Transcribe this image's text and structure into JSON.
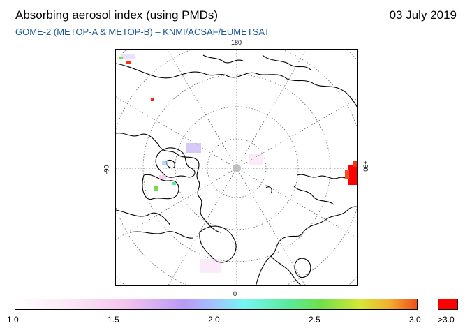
{
  "header": {
    "title": "Absorbing aerosol index (using PMDs)",
    "date": "03 July 2019",
    "subtitle": "GOME-2 (METOP-A & METOP-B)  –  KNMI/ACSAF/EUMETSAT"
  },
  "map": {
    "projection": "north polar stereographic",
    "longitude_labels": {
      "top": "180",
      "bottom": "0",
      "left": "-90",
      "right": "+90"
    },
    "graticule": "dotted",
    "pole_no_data_color": "#c0c0c0"
  },
  "colorbar": {
    "ticks": [
      "1.0",
      "1.5",
      "2.0",
      "2.5",
      "3.0"
    ],
    "overflow_label": ">3.0",
    "overflow_color": "#ff0000"
  }
}
